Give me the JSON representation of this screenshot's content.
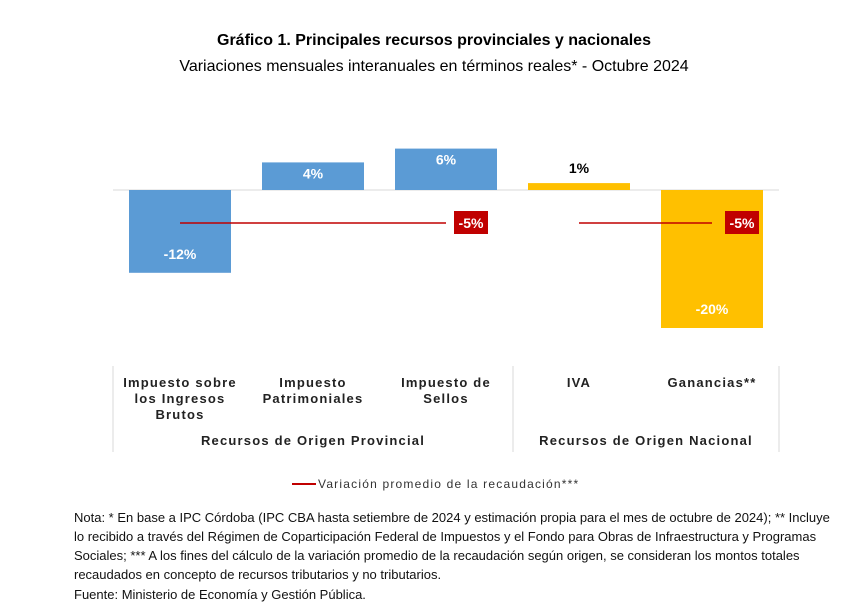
{
  "chart_data": {
    "type": "bar",
    "title": "Gráfico 1. Principales recursos provinciales y nacionales",
    "subtitle": "Variaciones mensuales interanuales en términos reales* - Octubre 2024",
    "categories": [
      [
        "Impuesto sobre",
        "los Ingresos",
        "Brutos"
      ],
      [
        "Impuesto",
        "Patrimoniales"
      ],
      [
        "Impuesto de",
        "Sellos"
      ],
      [
        "IVA"
      ],
      [
        "Ganancias**"
      ]
    ],
    "values": [
      -12,
      4,
      6,
      1,
      -20
    ],
    "value_labels": [
      "-12%",
      "4%",
      "6%",
      "1%",
      "-20%"
    ],
    "colors": [
      "#5b9bd5",
      "#5b9bd5",
      "#5b9bd5",
      "#ffc000",
      "#ffc000"
    ],
    "groups": [
      {
        "label": "Recursos de Origen Provincial",
        "categories": [
          0,
          1,
          2
        ],
        "average": -5,
        "average_label": "-5%"
      },
      {
        "label": "Recursos de Origen Nacional",
        "categories": [
          3,
          4
        ],
        "average": -5,
        "average_label": "-5%"
      }
    ],
    "legend": "Variación promedio de la recaudación***",
    "ylim": [
      -22,
      9
    ],
    "grid": false
  },
  "note": "Nota: * En base a IPC Córdoba (IPC CBA hasta setiembre de 2024 y estimación propia para el mes de octubre de 2024); ** Incluye lo recibido a través del Régimen de Coparticipación Federal de Impuestos y el Fondo para Obras de Infraestructura y Programas Sociales; *** A los fines del cálculo de la variación promedio de la recaudación según origen, se consideran los montos totales recaudados en concepto de recursos tributarios y no tributarios.",
  "source": "Fuente: Ministerio de Economía y Gestión Pública.",
  "colors": {
    "provincial": "#5b9bd5",
    "nacional": "#ffc000",
    "average": "#c00000"
  }
}
